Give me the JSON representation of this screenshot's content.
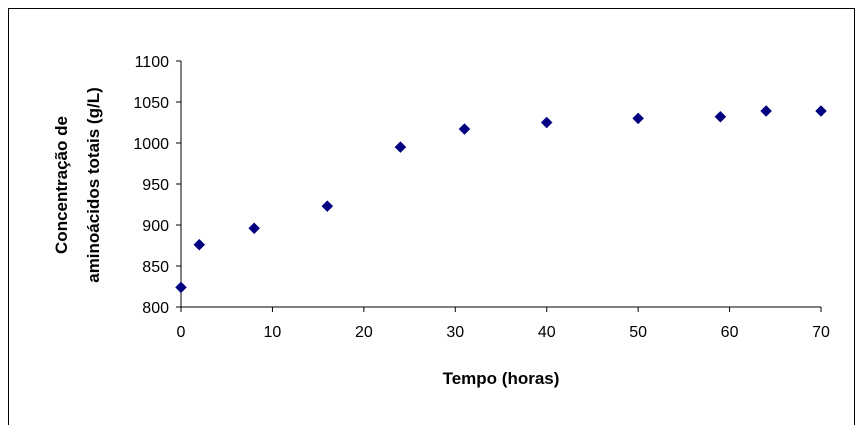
{
  "chart_data": {
    "type": "scatter",
    "title": "",
    "xlabel": "Tempo (horas)",
    "ylabel_lines": [
      "Concentração de",
      "aminoácidos totais (g/L)"
    ],
    "xlim": [
      0,
      70
    ],
    "ylim": [
      800,
      1100
    ],
    "x_ticks": [
      "0",
      "10",
      "20",
      "30",
      "40",
      "50",
      "60",
      "70"
    ],
    "y_ticks": [
      "800",
      "850",
      "900",
      "950",
      "1000",
      "1050",
      "1100"
    ],
    "grid": false,
    "legend": "none",
    "marker": "diamond",
    "marker_color": "#000080",
    "series": [
      {
        "x": [
          0,
          2,
          8,
          16,
          24,
          31,
          40,
          50,
          59,
          64,
          70
        ],
        "y": [
          824,
          876,
          896,
          923,
          995,
          1017,
          1025,
          1030,
          1032,
          1039,
          1039
        ]
      }
    ]
  }
}
